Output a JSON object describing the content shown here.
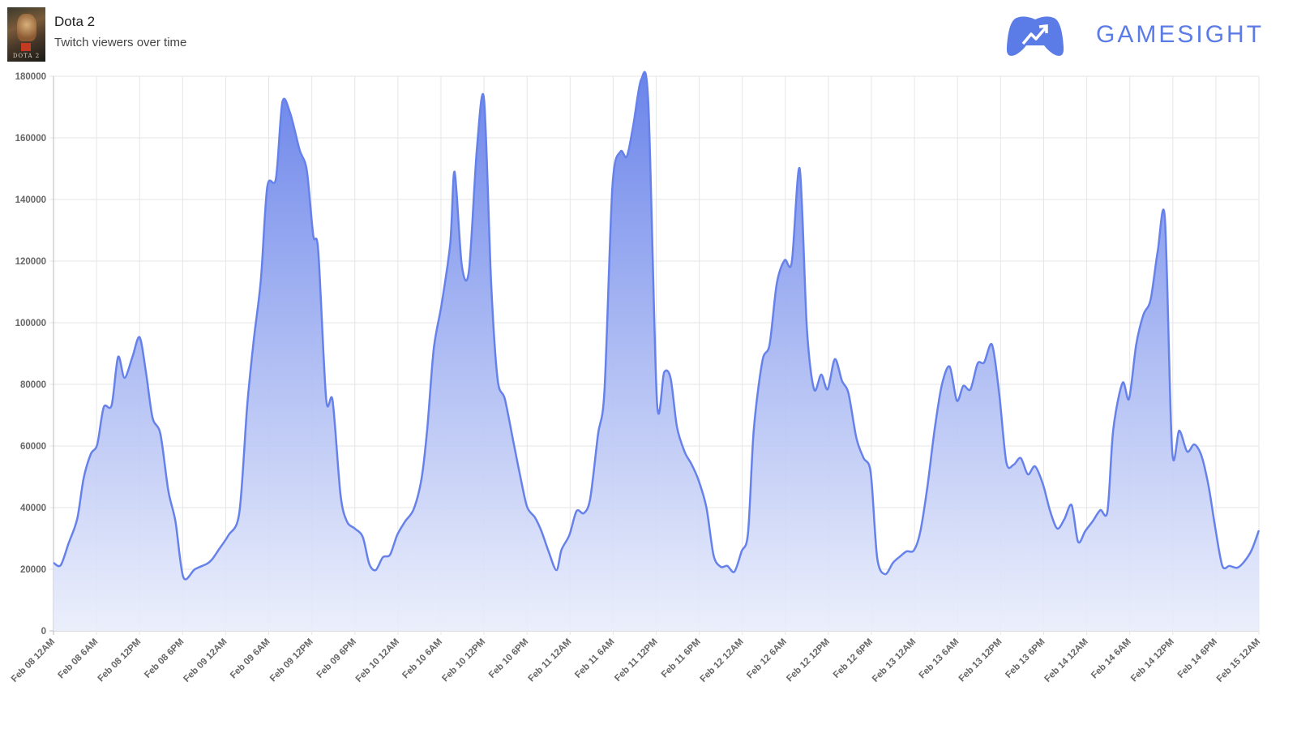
{
  "header": {
    "game_title": "Dota 2",
    "subtitle": "Twitch viewers over time",
    "thumbnail_text": "DOTA 2"
  },
  "brand": {
    "name": "GAMESIGHT",
    "color": "#5b7be6"
  },
  "chart_data": {
    "type": "area",
    "title": "Twitch viewers over time",
    "xlabel": "",
    "ylabel": "",
    "x_unit": "hours since Feb 08 12AM",
    "xlim": [
      0,
      168
    ],
    "ylim": [
      0,
      180000
    ],
    "grid": true,
    "line_color": "#6682ea",
    "y_ticks": [
      "0",
      "20000",
      "40000",
      "60000",
      "80000",
      "100000",
      "120000",
      "140000",
      "160000",
      "180000"
    ],
    "x_ticks": [
      "Feb 08 12AM",
      "Feb 08 6AM",
      "Feb 08 12PM",
      "Feb 08 6PM",
      "Feb 09 12AM",
      "Feb 09 6AM",
      "Feb 09 12PM",
      "Feb 09 6PM",
      "Feb 10 12AM",
      "Feb 10 6AM",
      "Feb 10 12PM",
      "Feb 10 6PM",
      "Feb 11 12AM",
      "Feb 11 6AM",
      "Feb 11 12PM",
      "Feb 11 6PM",
      "Feb 12 12AM",
      "Feb 12 6AM",
      "Feb 12 12PM",
      "Feb 12 6PM",
      "Feb 13 12AM",
      "Feb 13 6AM",
      "Feb 13 12PM",
      "Feb 13 6PM",
      "Feb 14 12AM",
      "Feb 14 6AM",
      "Feb 14 12PM",
      "Feb 14 6PM",
      "Feb 15 12AM"
    ],
    "series": [
      {
        "name": "Twitch viewers",
        "points": [
          [
            0,
            22100
          ],
          [
            1,
            21300
          ],
          [
            2.1,
            28400
          ],
          [
            3.3,
            36300
          ],
          [
            4.2,
            49500
          ],
          [
            5.2,
            57400
          ],
          [
            6.1,
            60500
          ],
          [
            7,
            72600
          ],
          [
            8.1,
            73200
          ],
          [
            9,
            88900
          ],
          [
            9.9,
            82100
          ],
          [
            11,
            88900
          ],
          [
            12,
            95300
          ],
          [
            12.9,
            83700
          ],
          [
            13.8,
            69200
          ],
          [
            14.9,
            63900
          ],
          [
            16,
            45500
          ],
          [
            17,
            35500
          ],
          [
            18.1,
            17400
          ],
          [
            19.7,
            20000
          ],
          [
            21.4,
            21800
          ],
          [
            22.1,
            23200
          ],
          [
            23.1,
            26600
          ],
          [
            24.4,
            31100
          ],
          [
            25.9,
            38400
          ],
          [
            27,
            73200
          ],
          [
            27.9,
            94200
          ],
          [
            28.9,
            113900
          ],
          [
            29.8,
            144200
          ],
          [
            31,
            146800
          ],
          [
            31.9,
            171600
          ],
          [
            33,
            167900
          ],
          [
            34.3,
            156100
          ],
          [
            35.3,
            149500
          ],
          [
            36.2,
            128400
          ],
          [
            36.9,
            123200
          ],
          [
            38,
            75300
          ],
          [
            38.9,
            74700
          ],
          [
            40,
            44200
          ],
          [
            40.9,
            35500
          ],
          [
            42,
            33200
          ],
          [
            43.1,
            30500
          ],
          [
            44,
            21800
          ],
          [
            44.9,
            19700
          ],
          [
            45.9,
            23900
          ],
          [
            46.9,
            24700
          ],
          [
            47.9,
            31100
          ],
          [
            49,
            35500
          ],
          [
            50.2,
            39500
          ],
          [
            51.3,
            49500
          ],
          [
            52.1,
            65800
          ],
          [
            53,
            91600
          ],
          [
            54.1,
            106100
          ],
          [
            55.3,
            125800
          ],
          [
            55.9,
            149000
          ],
          [
            56.9,
            118700
          ],
          [
            57.9,
            116800
          ],
          [
            59,
            156100
          ],
          [
            60,
            172600
          ],
          [
            61,
            112600
          ],
          [
            61.9,
            81600
          ],
          [
            62.9,
            75300
          ],
          [
            64.1,
            61300
          ],
          [
            65,
            50800
          ],
          [
            66,
            40300
          ],
          [
            67.1,
            36800
          ],
          [
            68,
            32400
          ],
          [
            69,
            25800
          ],
          [
            70.1,
            19700
          ],
          [
            70.8,
            26300
          ],
          [
            71.9,
            31100
          ],
          [
            72.9,
            38900
          ],
          [
            73.9,
            38200
          ],
          [
            74.8,
            42900
          ],
          [
            75.9,
            63900
          ],
          [
            76.8,
            78400
          ],
          [
            77.9,
            144200
          ],
          [
            79,
            155500
          ],
          [
            79.9,
            153900
          ],
          [
            80.8,
            164000
          ],
          [
            81.9,
            178900
          ],
          [
            82.9,
            171300
          ],
          [
            84.1,
            74700
          ],
          [
            85.1,
            83900
          ],
          [
            86,
            82100
          ],
          [
            86.9,
            66100
          ],
          [
            88,
            57900
          ],
          [
            88.9,
            54200
          ],
          [
            89.9,
            48900
          ],
          [
            91,
            40000
          ],
          [
            92,
            24500
          ],
          [
            93,
            20800
          ],
          [
            93.9,
            21100
          ],
          [
            94.9,
            19200
          ],
          [
            95.9,
            25800
          ],
          [
            96.8,
            31800
          ],
          [
            97.6,
            65300
          ],
          [
            98.8,
            87600
          ],
          [
            99.8,
            92900
          ],
          [
            100.8,
            112600
          ],
          [
            101.9,
            120300
          ],
          [
            102.9,
            119700
          ],
          [
            104,
            150000
          ],
          [
            105,
            98200
          ],
          [
            106,
            78400
          ],
          [
            107,
            83200
          ],
          [
            107.9,
            78400
          ],
          [
            108.9,
            88200
          ],
          [
            109.9,
            81100
          ],
          [
            110.8,
            77100
          ],
          [
            111.9,
            62600
          ],
          [
            112.9,
            56100
          ],
          [
            113.9,
            51300
          ],
          [
            114.8,
            23700
          ],
          [
            115.9,
            18400
          ],
          [
            117,
            22100
          ],
          [
            118,
            24200
          ],
          [
            118.9,
            25800
          ],
          [
            119.9,
            26100
          ],
          [
            120.8,
            32100
          ],
          [
            121.8,
            46800
          ],
          [
            122.8,
            65300
          ],
          [
            123.8,
            79700
          ],
          [
            124.9,
            85800
          ],
          [
            125.9,
            74700
          ],
          [
            126.8,
            79500
          ],
          [
            127.8,
            78400
          ],
          [
            128.8,
            86800
          ],
          [
            129.7,
            87100
          ],
          [
            130.8,
            92900
          ],
          [
            131.8,
            77100
          ],
          [
            132.8,
            54700
          ],
          [
            133.8,
            53900
          ],
          [
            134.8,
            56100
          ],
          [
            135.8,
            50800
          ],
          [
            136.8,
            53400
          ],
          [
            137.9,
            47600
          ],
          [
            138.9,
            38900
          ],
          [
            139.9,
            33200
          ],
          [
            140.9,
            36300
          ],
          [
            141.9,
            40800
          ],
          [
            142.8,
            28900
          ],
          [
            143.8,
            32400
          ],
          [
            144.9,
            35800
          ],
          [
            145.9,
            39200
          ],
          [
            146.9,
            38900
          ],
          [
            147.7,
            65300
          ],
          [
            149,
            80500
          ],
          [
            149.9,
            75300
          ],
          [
            150.9,
            92900
          ],
          [
            151.9,
            102600
          ],
          [
            152.9,
            107400
          ],
          [
            153.9,
            123200
          ],
          [
            154.9,
            133700
          ],
          [
            155.9,
            58700
          ],
          [
            156.9,
            65000
          ],
          [
            158,
            58200
          ],
          [
            159,
            60500
          ],
          [
            160,
            56800
          ],
          [
            161,
            46800
          ],
          [
            161.9,
            33700
          ],
          [
            162.9,
            21100
          ],
          [
            163.9,
            21100
          ],
          [
            165,
            20500
          ],
          [
            166,
            22600
          ],
          [
            167,
            26300
          ],
          [
            168,
            32600
          ]
        ]
      }
    ]
  }
}
